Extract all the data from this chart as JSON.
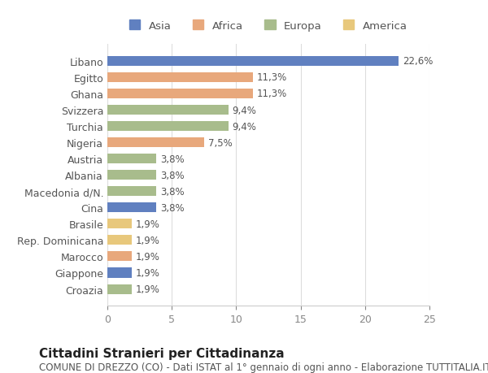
{
  "categories": [
    "Libano",
    "Egitto",
    "Ghana",
    "Svizzera",
    "Turchia",
    "Nigeria",
    "Austria",
    "Albania",
    "Macedonia d/N.",
    "Cina",
    "Brasile",
    "Rep. Dominicana",
    "Marocco",
    "Giappone",
    "Croazia"
  ],
  "values": [
    22.6,
    11.3,
    11.3,
    9.4,
    9.4,
    7.5,
    3.8,
    3.8,
    3.8,
    3.8,
    1.9,
    1.9,
    1.9,
    1.9,
    1.9
  ],
  "continents": [
    "Asia",
    "Africa",
    "Africa",
    "Europa",
    "Europa",
    "Africa",
    "Europa",
    "Europa",
    "Europa",
    "Asia",
    "America",
    "America",
    "Africa",
    "Asia",
    "Europa"
  ],
  "labels": [
    "22,6%",
    "11,3%",
    "11,3%",
    "9,4%",
    "9,4%",
    "7,5%",
    "3,8%",
    "3,8%",
    "3,8%",
    "3,8%",
    "1,9%",
    "1,9%",
    "1,9%",
    "1,9%",
    "1,9%"
  ],
  "colors": {
    "Asia": "#6080C0",
    "Africa": "#E8A87C",
    "Europa": "#A8BC8C",
    "America": "#E8C87C"
  },
  "legend_order": [
    "Asia",
    "Africa",
    "Europa",
    "America"
  ],
  "xlim": [
    0,
    25
  ],
  "xticks": [
    0,
    5,
    10,
    15,
    20,
    25
  ],
  "title": "Cittadini Stranieri per Cittadinanza",
  "subtitle": "COMUNE DI DREZZO (CO) - Dati ISTAT al 1° gennaio di ogni anno - Elaborazione TUTTITALIA.IT",
  "background_color": "#ffffff",
  "bar_height": 0.6,
  "label_fontsize": 8.5,
  "title_fontsize": 11,
  "subtitle_fontsize": 8.5,
  "tick_fontsize": 9
}
